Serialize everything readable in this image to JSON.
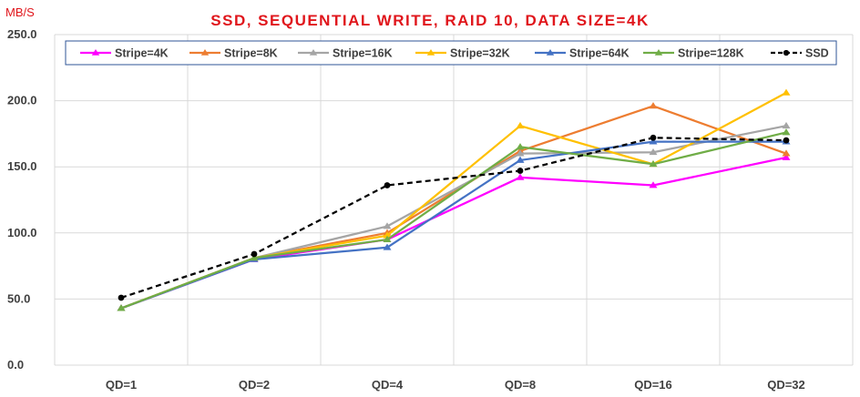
{
  "chart_data": {
    "type": "line",
    "title": "SSD, SEQUENTIAL WRITE, RAID 10, DATA SIZE=4K",
    "ylabel": "MB/S",
    "xlabel": "",
    "categories": [
      "QD=1",
      "QD=2",
      "QD=4",
      "QD=8",
      "QD=16",
      "QD=32"
    ],
    "ylim": [
      0,
      250
    ],
    "yticks": [
      0,
      50,
      100,
      150,
      200,
      250
    ],
    "ytick_labels": [
      "0.0",
      "50.0",
      "100.0",
      "150.0",
      "200.0",
      "250.0"
    ],
    "grid": true,
    "legend_position": "top",
    "series": [
      {
        "name": "Stripe=4K",
        "color": "#ff00ff",
        "marker": "triangle",
        "dashed": false,
        "values": [
          43,
          80,
          95,
          142,
          136,
          157
        ]
      },
      {
        "name": "Stripe=8K",
        "color": "#ed7d31",
        "marker": "triangle",
        "dashed": false,
        "values": [
          43,
          81,
          100,
          162,
          196,
          160
        ]
      },
      {
        "name": "Stripe=16K",
        "color": "#a5a5a5",
        "marker": "triangle",
        "dashed": false,
        "values": [
          43,
          81,
          105,
          160,
          161,
          181
        ]
      },
      {
        "name": "Stripe=32K",
        "color": "#ffc000",
        "marker": "triangle",
        "dashed": false,
        "values": [
          43,
          81,
          98,
          181,
          152,
          206
        ]
      },
      {
        "name": "Stripe=64K",
        "color": "#4472c4",
        "marker": "triangle",
        "dashed": false,
        "values": [
          43,
          80,
          89,
          155,
          169,
          169
        ]
      },
      {
        "name": "Stripe=128K",
        "color": "#70ad47",
        "marker": "triangle",
        "dashed": false,
        "values": [
          43,
          81,
          95,
          165,
          152,
          176
        ]
      },
      {
        "name": "SSD",
        "color": "#000000",
        "marker": "circle",
        "dashed": true,
        "values": [
          51,
          84,
          136,
          147,
          172,
          170
        ]
      }
    ],
    "title_color": "#e0161c",
    "unit_color": "#e0161c"
  }
}
